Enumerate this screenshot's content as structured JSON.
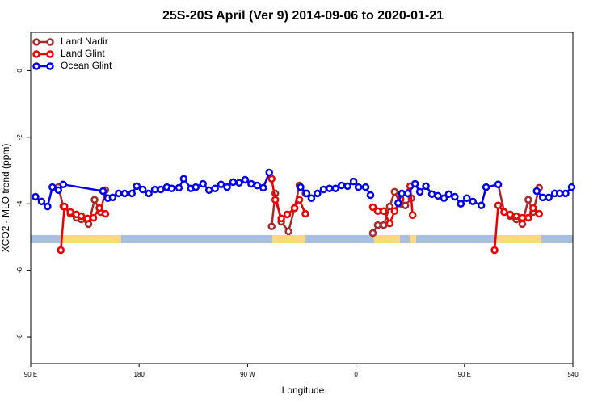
{
  "chart_data": {
    "type": "line",
    "title": "25S-20S April (Ver 9)   2014-09-06 to 2020-01-21",
    "x_label": "Longitude",
    "y_label": "XCO2 - MLO trend (ppm)",
    "xlim": [
      90,
      540
    ],
    "ylim": [
      -8.8,
      1.15
    ],
    "xticks": [
      {
        "value": 90,
        "label": "90 E"
      },
      180,
      {
        "value": 270,
        "label": "90 W"
      },
      {
        "value": 360,
        "label": "0"
      },
      {
        "value": 450,
        "label": "90 E"
      },
      540
    ],
    "yticks": [
      0,
      -2,
      -4,
      -6,
      -8
    ],
    "legend": "top-left",
    "series": [
      {
        "name": "Land Nadir",
        "color": "#a52a2a",
        "x": [
          113,
          117,
          123,
          128,
          132,
          138,
          143,
          148,
          152,
          230,
          290,
          293,
          298,
          304,
          309,
          313,
          318,
          350,
          374,
          378,
          383,
          388,
          392,
          397,
          401,
          406,
          450,
          478,
          483,
          488,
          493,
          498,
          503,
          507,
          512
        ],
        "values": [
          -3.5,
          -4.08,
          -4.3,
          -4.42,
          -4.47,
          -4.61,
          -3.88,
          -4.25,
          -3.59,
          null,
          -4.68,
          -3.69,
          -4.54,
          -4.83,
          -4.13,
          -3.45,
          -3.69,
          null,
          -4.88,
          -4.64,
          -4.64,
          -4.08,
          -3.64,
          -4.0,
          -4.05,
          -3.83,
          null,
          -3.42,
          -4.25,
          -4.37,
          -4.47,
          -4.61,
          -3.88,
          -4.25,
          -3.52
        ]
      },
      {
        "name": "Land Glint",
        "color": "#ee0000",
        "x": [
          115,
          118,
          123,
          128,
          132,
          137,
          142,
          147,
          152,
          230,
          290,
          293,
          298,
          303,
          309,
          313,
          318,
          350,
          374,
          378,
          383,
          388,
          392,
          397,
          405,
          407,
          450,
          475,
          478,
          483,
          488,
          493,
          498,
          503,
          507,
          512
        ],
        "values": [
          -5.39,
          -4.08,
          -4.25,
          -4.32,
          -4.37,
          -4.44,
          -4.42,
          -4.13,
          -4.3,
          null,
          -3.25,
          -3.88,
          -4.44,
          -4.32,
          -4.13,
          -3.88,
          -4.3,
          null,
          -4.1,
          -4.22,
          -4.22,
          -4.59,
          -4.22,
          -3.86,
          -3.47,
          -4.34,
          null,
          -5.39,
          -4.05,
          -4.25,
          -4.32,
          -4.37,
          -4.42,
          -4.42,
          -4.13,
          -4.3
        ]
      },
      {
        "name": "Ocean Glint",
        "color": "#0000ee",
        "x": [
          94,
          99,
          104,
          108,
          113,
          117,
          150,
          154,
          158,
          163,
          168,
          174,
          178,
          183,
          188,
          193,
          198,
          203,
          207,
          213,
          217,
          223,
          227,
          233,
          238,
          243,
          248,
          253,
          258,
          263,
          268,
          273,
          278,
          283,
          288,
          310,
          314,
          319,
          323,
          328,
          333,
          338,
          343,
          348,
          353,
          358,
          362,
          368,
          372,
          385,
          395,
          398,
          403,
          409,
          413,
          418,
          423,
          428,
          433,
          437,
          442,
          447,
          452,
          457,
          464,
          468,
          478,
          500,
          510,
          515,
          520,
          525,
          529,
          534,
          539
        ],
        "values": [
          -3.79,
          -3.93,
          -4.08,
          -3.5,
          -3.59,
          -3.42,
          -3.62,
          -3.83,
          -3.81,
          -3.69,
          -3.69,
          -3.69,
          -3.47,
          -3.57,
          -3.69,
          -3.57,
          -3.57,
          -3.5,
          -3.54,
          -3.52,
          -3.25,
          -3.54,
          -3.5,
          -3.4,
          -3.59,
          -3.54,
          -3.42,
          -3.5,
          -3.35,
          -3.37,
          -3.28,
          -3.4,
          -3.45,
          -3.52,
          -3.06,
          null,
          -3.5,
          -3.69,
          -3.83,
          -3.69,
          -3.57,
          -3.54,
          -3.54,
          -3.45,
          -3.47,
          -3.33,
          -3.5,
          -3.5,
          -3.74,
          null,
          -3.98,
          -3.69,
          -3.69,
          -3.4,
          -3.64,
          -3.47,
          -3.71,
          -3.76,
          -3.83,
          -3.71,
          -3.79,
          -4.0,
          -3.83,
          -3.93,
          -4.05,
          -3.5,
          -3.42,
          null,
          -3.62,
          -3.81,
          -3.81,
          -3.69,
          -3.69,
          -3.69,
          -3.5
        ]
      }
    ]
  }
}
